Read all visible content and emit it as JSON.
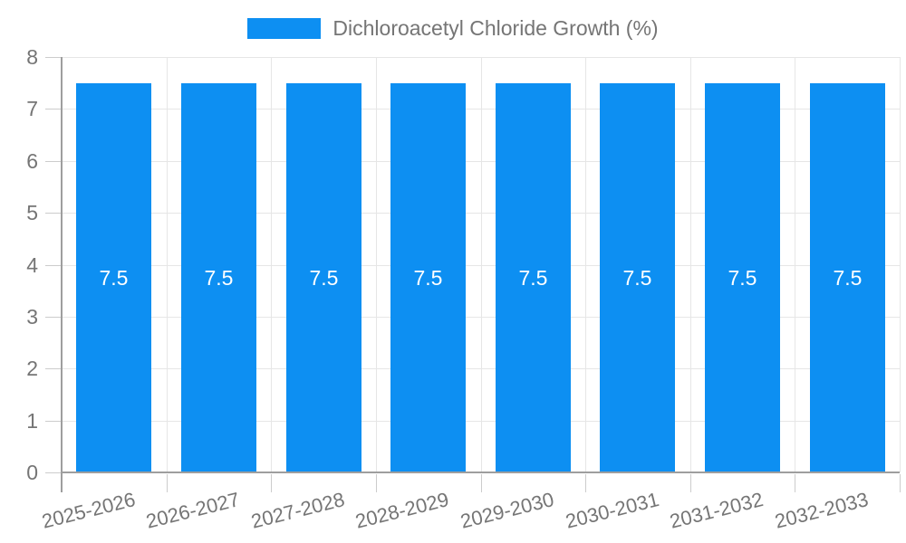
{
  "legend": {
    "label": "Dichloroacetyl Chloride Growth (%)"
  },
  "chart_data": {
    "type": "bar",
    "title": "Dichloroacetyl Chloride Growth (%)",
    "categories": [
      "2025-2026",
      "2026-2027",
      "2027-2028",
      "2028-2029",
      "2029-2030",
      "2030-2031",
      "2031-2032",
      "2032-2033"
    ],
    "values": [
      7.5,
      7.5,
      7.5,
      7.5,
      7.5,
      7.5,
      7.5,
      7.5
    ],
    "value_labels": [
      "7.5",
      "7.5",
      "7.5",
      "7.5",
      "7.5",
      "7.5",
      "7.5",
      "7.5"
    ],
    "xlabel": "",
    "ylabel": "",
    "ylim": [
      0,
      8
    ],
    "y_ticks": [
      0,
      1,
      2,
      3,
      4,
      5,
      6,
      7,
      8
    ],
    "grid": true,
    "legend_position": "top",
    "colors": {
      "bar": "#0d8ff2",
      "value_label": "#ffffff",
      "axis_text": "#757575",
      "gridline": "#e6e6e6",
      "axis_line": "#9e9e9e",
      "tick": "#cccccc"
    }
  }
}
